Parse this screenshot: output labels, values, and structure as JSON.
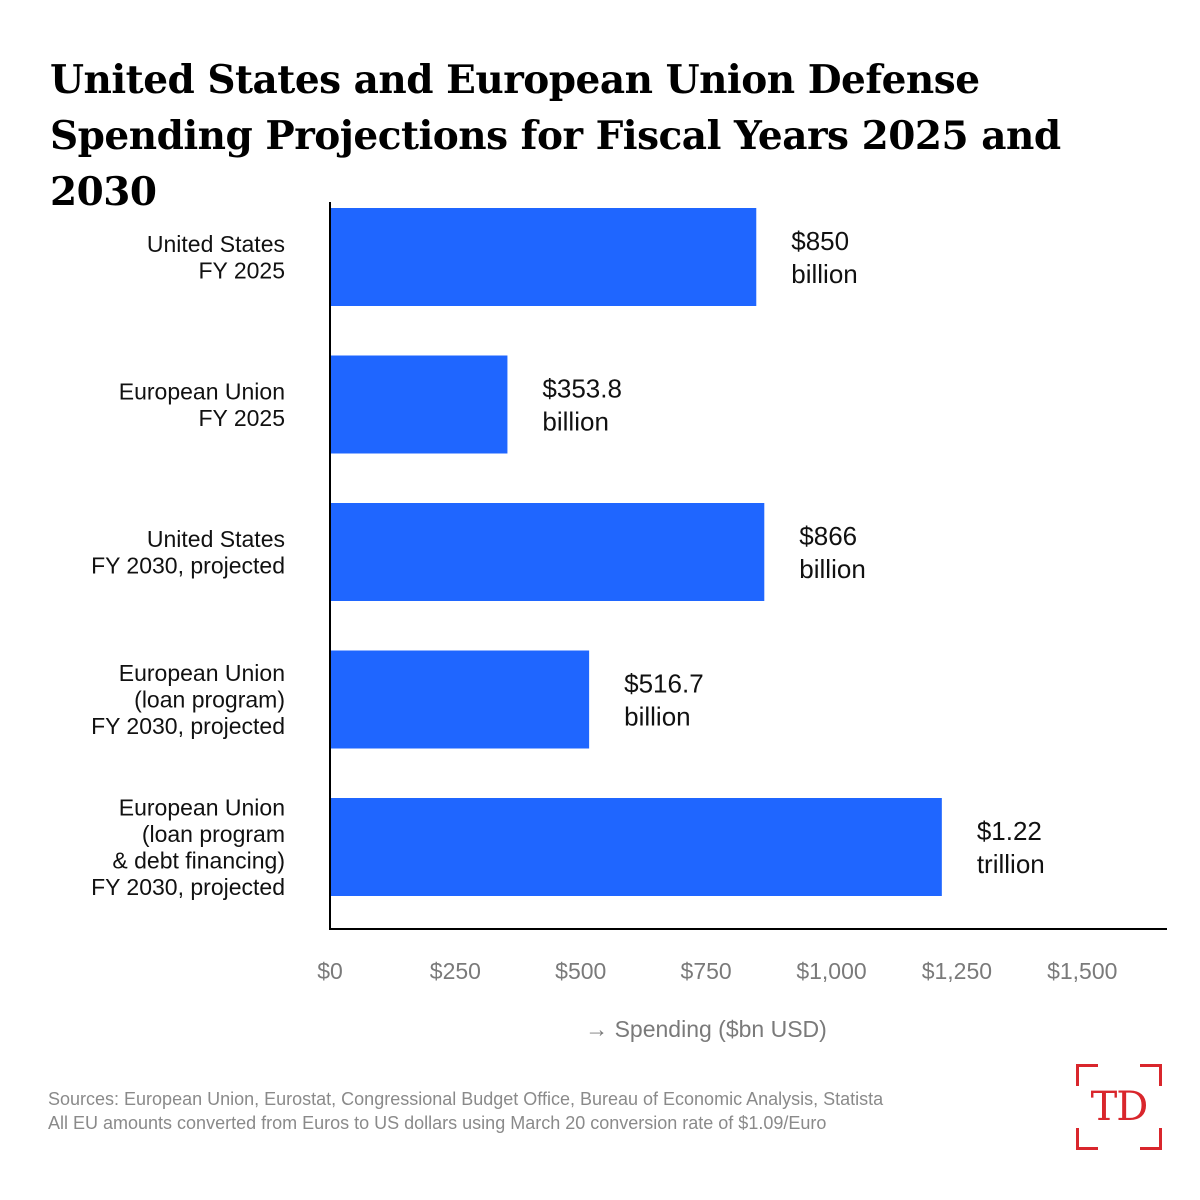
{
  "chart_data": {
    "type": "bar",
    "orientation": "horizontal",
    "title": "United States and European Union Defense Spending Projections for Fiscal Years 2025 and 2030",
    "categories": [
      [
        "United States",
        "FY 2025"
      ],
      [
        "European Union",
        "FY 2025"
      ],
      [
        "United States",
        "FY 2030, projected"
      ],
      [
        "European Union",
        "(loan program)",
        "FY 2030, projected"
      ],
      [
        "European Union",
        "(loan program",
        "& debt financing)",
        "FY 2030, projected"
      ]
    ],
    "values": [
      850,
      353.8,
      866,
      516.7,
      1220
    ],
    "value_labels": [
      [
        "$850",
        "billion"
      ],
      [
        "$353.8",
        "billion"
      ],
      [
        "$866",
        "billion"
      ],
      [
        "$516.7",
        "billion"
      ],
      [
        "$1.22",
        "trillion"
      ]
    ],
    "xticks": [
      0,
      250,
      500,
      750,
      1000,
      1250,
      1500
    ],
    "xtick_labels": [
      "$0",
      "$250",
      "$500",
      "$750",
      "$1,000",
      "$1,250",
      "$1,500"
    ],
    "xlabel": "→ Spending ($bn USD)",
    "ylabel": "",
    "xlim": [
      0,
      1665
    ],
    "grid": false,
    "bar_color": "#1f66ff"
  },
  "footer": {
    "source_line_1": "Sources: European Union, Eurostat, Congressional Budget Office, Bureau of Economic Analysis, Statista",
    "source_line_2": "All EU amounts converted from Euros to US dollars using March 20 conversion rate of $1.09/Euro"
  },
  "logo": {
    "text": "TD",
    "color": "#d9262c"
  }
}
